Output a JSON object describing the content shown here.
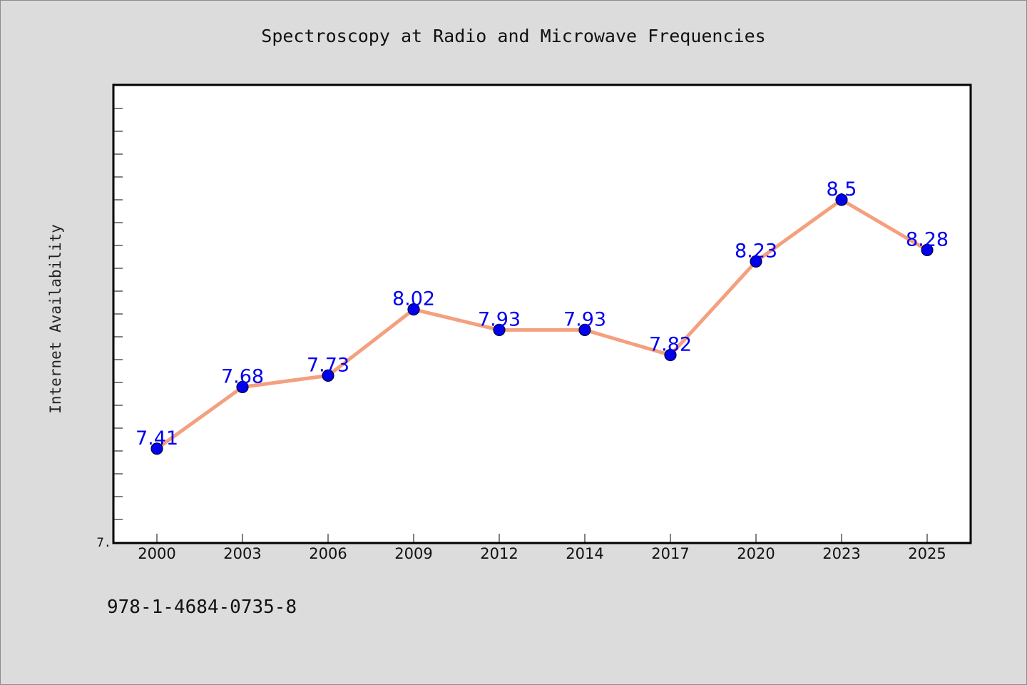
{
  "chart_data": {
    "type": "line",
    "title": "Spectroscopy at Radio and Microwave Frequencies",
    "xlabel": "",
    "ylabel": "Internet Availability",
    "categories": [
      "2000",
      "2003",
      "2006",
      "2009",
      "2012",
      "2014",
      "2017",
      "2020",
      "2023",
      "2025"
    ],
    "series": [
      {
        "values": [
          7.41,
          7.68,
          7.73,
          8.02,
          7.93,
          7.93,
          7.82,
          8.23,
          8.5,
          8.28
        ],
        "data_labels": [
          "7.41",
          "7.68",
          "7.73",
          "8.02",
          "7.93",
          "7.93",
          "7.82",
          "8.23",
          "8.5",
          "8.28"
        ],
        "line_color": "#f4a07e",
        "marker_color": "#0000ee"
      }
    ],
    "ylim": [
      7.0,
      9.0
    ],
    "y_tick_label": "7.",
    "y_minor_tick_step": 0.1,
    "grid": false,
    "legend": "none",
    "data_label_color": "#0000ee"
  },
  "footer": {
    "isbn": "978-1-4684-0735-8"
  }
}
